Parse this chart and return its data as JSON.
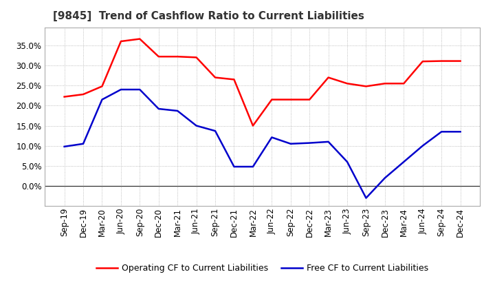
{
  "title": "[9845]  Trend of Cashflow Ratio to Current Liabilities",
  "x_labels": [
    "Sep-19",
    "Dec-19",
    "Mar-20",
    "Jun-20",
    "Sep-20",
    "Dec-20",
    "Mar-21",
    "Jun-21",
    "Sep-21",
    "Dec-21",
    "Mar-22",
    "Jun-22",
    "Sep-22",
    "Dec-22",
    "Mar-23",
    "Jun-23",
    "Sep-23",
    "Dec-23",
    "Mar-24",
    "Jun-24",
    "Sep-24",
    "Dec-24"
  ],
  "operating_cf": [
    0.222,
    0.228,
    0.248,
    0.36,
    0.366,
    0.322,
    0.322,
    0.32,
    0.27,
    0.265,
    0.15,
    0.215,
    0.215,
    0.215,
    0.27,
    0.255,
    0.248,
    0.255,
    0.255,
    0.31,
    0.311,
    0.311
  ],
  "free_cf": [
    0.098,
    0.105,
    0.215,
    0.24,
    0.24,
    0.192,
    0.187,
    0.15,
    0.137,
    0.048,
    0.048,
    0.121,
    0.105,
    0.107,
    0.11,
    0.06,
    -0.03,
    0.02,
    0.06,
    0.1,
    0.135,
    0.135
  ],
  "operating_color": "#FF0000",
  "free_color": "#0000CC",
  "background_color": "#FFFFFF",
  "plot_bg_color": "#FFFFFF",
  "grid_color": "#AAAAAA",
  "ylim": [
    -0.05,
    0.395
  ],
  "yticks": [
    0.0,
    0.05,
    0.1,
    0.15,
    0.2,
    0.25,
    0.3,
    0.35
  ],
  "legend_operating": "Operating CF to Current Liabilities",
  "legend_free": "Free CF to Current Liabilities",
  "line_width": 1.8,
  "title_fontsize": 11,
  "tick_fontsize": 8.5
}
